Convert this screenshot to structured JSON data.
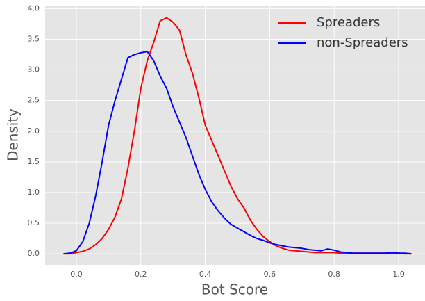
{
  "chart_data": {
    "type": "line",
    "xlabel": "Bot Score",
    "ylabel": "Density",
    "x": [
      -0.04,
      -0.02,
      0,
      0.02,
      0.04,
      0.06,
      0.08,
      0.1,
      0.12,
      0.14,
      0.16,
      0.18,
      0.2,
      0.22,
      0.24,
      0.26,
      0.28,
      0.3,
      0.32,
      0.34,
      0.36,
      0.38,
      0.4,
      0.42,
      0.44,
      0.46,
      0.48,
      0.5,
      0.52,
      0.54,
      0.56,
      0.58,
      0.6,
      0.62,
      0.64,
      0.66,
      0.68,
      0.7,
      0.72,
      0.74,
      0.76,
      0.78,
      0.8,
      0.82,
      0.84,
      0.86,
      0.88,
      0.9,
      0.92,
      0.94,
      0.96,
      0.98,
      1,
      1.02,
      1.04
    ],
    "series": [
      {
        "name": "Spreaders",
        "color": "#ff0000",
        "values": [
          0,
          0,
          0.02,
          0.04,
          0.08,
          0.15,
          0.25,
          0.4,
          0.6,
          0.9,
          1.4,
          2.0,
          2.7,
          3.15,
          3.45,
          3.8,
          3.85,
          3.78,
          3.65,
          3.25,
          2.95,
          2.55,
          2.1,
          1.85,
          1.6,
          1.35,
          1.1,
          0.9,
          0.75,
          0.55,
          0.4,
          0.28,
          0.2,
          0.13,
          0.09,
          0.06,
          0.05,
          0.04,
          0.03,
          0.02,
          0.02,
          0.02,
          0.02,
          0.01,
          0.01,
          0.01,
          0.01,
          0.01,
          0.01,
          0.01,
          0.01,
          0.01,
          0.01,
          0,
          0
        ]
      },
      {
        "name": "non-Spreaders",
        "color": "#0000ff",
        "values": [
          0,
          0.01,
          0.05,
          0.2,
          0.5,
          0.95,
          1.5,
          2.1,
          2.5,
          2.85,
          3.2,
          3.25,
          3.28,
          3.3,
          3.15,
          2.9,
          2.7,
          2.4,
          2.15,
          1.9,
          1.6,
          1.3,
          1.05,
          0.85,
          0.7,
          0.58,
          0.48,
          0.42,
          0.36,
          0.3,
          0.25,
          0.22,
          0.18,
          0.15,
          0.13,
          0.11,
          0.1,
          0.09,
          0.07,
          0.06,
          0.05,
          0.08,
          0.06,
          0.03,
          0.02,
          0.01,
          0.01,
          0.01,
          0.01,
          0.01,
          0.01,
          0.02,
          0.01,
          0.01,
          0
        ]
      }
    ],
    "xlim": [
      -0.097,
      1.082
    ],
    "ylim": [
      -0.18,
      4.05
    ],
    "xticks": [
      {
        "value": 0,
        "label": "0.0"
      },
      0.2,
      0.4,
      0.6,
      0.8,
      {
        "value": 1,
        "label": "1.0"
      }
    ],
    "yticks": [
      {
        "value": 0,
        "label": "0.0"
      },
      0.5,
      {
        "value": 1,
        "label": "1.0"
      },
      1.5,
      {
        "value": 2,
        "label": "2.0"
      },
      2.5,
      {
        "value": 3,
        "label": "3.0"
      },
      3.5,
      {
        "value": 4,
        "label": "4.0"
      }
    ],
    "grid": true,
    "legend": "upper right"
  }
}
